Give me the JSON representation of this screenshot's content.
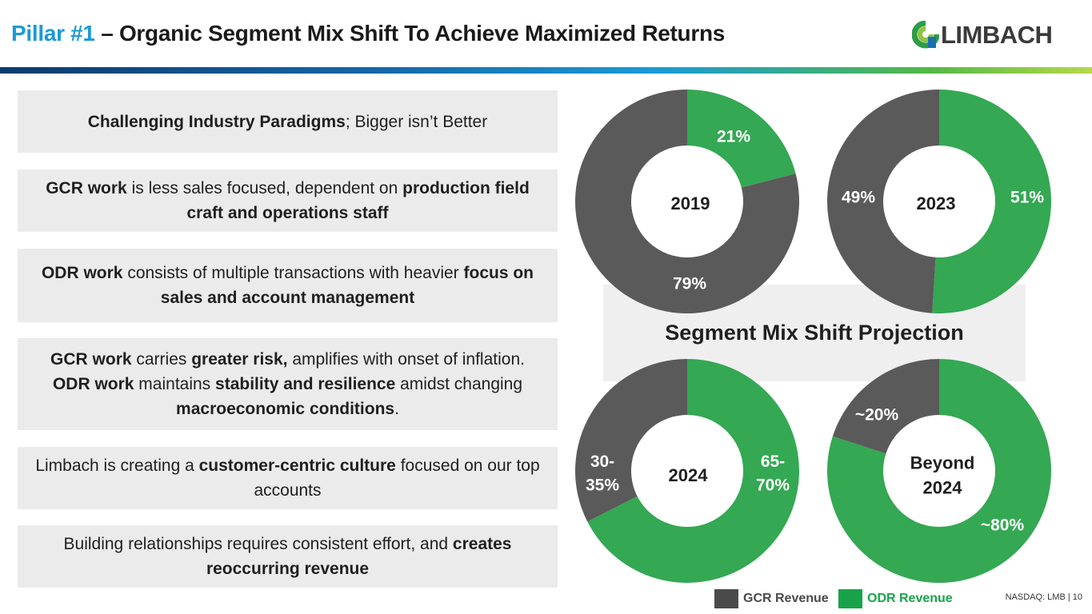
{
  "header": {
    "title_accent": "Pillar #1",
    "title_rest": " – Organic Segment Mix Shift To Achieve Maximized Returns",
    "logo_text": "LIMBACH"
  },
  "cards": [
    [
      {
        "t": "Challenging Industry Paradigms",
        "b": true
      },
      {
        "t": "; Bigger isn’t Better",
        "b": false
      }
    ],
    [
      {
        "t": "GCR work",
        "b": true
      },
      {
        "t": " is less sales focused, dependent on ",
        "b": false
      },
      {
        "t": "production field craft and operations staff",
        "b": true
      }
    ],
    [
      {
        "t": "ODR work",
        "b": true
      },
      {
        "t": " consists of multiple transactions with heavier ",
        "b": false
      },
      {
        "t": "focus on sales and account management",
        "b": true
      }
    ],
    [
      {
        "t": "GCR work",
        "b": true
      },
      {
        "t": " carries ",
        "b": false
      },
      {
        "t": "greater risk,",
        "b": true
      },
      {
        "t": " amplifies with onset of inflation. ",
        "b": false
      },
      {
        "t": "ODR work",
        "b": true
      },
      {
        "t": " maintains ",
        "b": false
      },
      {
        "t": "stability and resilience",
        "b": true
      },
      {
        "t": " amidst changing ",
        "b": false
      },
      {
        "t": "macroeconomic conditions",
        "b": true
      },
      {
        "t": ".",
        "b": false
      }
    ],
    [
      {
        "t": "Limbach is creating a ",
        "b": false
      },
      {
        "t": "customer-centric culture",
        "b": true
      },
      {
        "t": " focused on our top accounts",
        "b": false
      }
    ],
    [
      {
        "t": "Building relationships requires consistent effort, and ",
        "b": false
      },
      {
        "t": "creates reoccurring revenue",
        "b": true
      }
    ]
  ],
  "projection_title": "Segment Mix Shift Projection",
  "colors": {
    "gcr": "#5a5a5a",
    "odr": "#34a853",
    "title_accent": "#1b9ad6"
  },
  "chart_data": [
    {
      "type": "pie",
      "center_label": "2019",
      "slices": [
        {
          "name": "ODR Revenue",
          "value": 21,
          "label": "21%"
        },
        {
          "name": "GCR Revenue",
          "value": 79,
          "label": "79%"
        }
      ]
    },
    {
      "type": "pie",
      "center_label": "2023",
      "slices": [
        {
          "name": "ODR Revenue",
          "value": 51,
          "label": "51%"
        },
        {
          "name": "GCR Revenue",
          "value": 49,
          "label": "49%"
        }
      ]
    },
    {
      "type": "pie",
      "center_label": "2024",
      "slices": [
        {
          "name": "ODR Revenue",
          "value": 67.5,
          "label": "65-70%"
        },
        {
          "name": "GCR Revenue",
          "value": 32.5,
          "label": "30-35%"
        }
      ]
    },
    {
      "type": "pie",
      "center_label": "Beyond 2024",
      "slices": [
        {
          "name": "ODR Revenue",
          "value": 80,
          "label": "~80%"
        },
        {
          "name": "GCR Revenue",
          "value": 20,
          "label": "~20%"
        }
      ]
    }
  ],
  "legend": [
    {
      "name": "GCR Revenue",
      "color": "#5a5a5a"
    },
    {
      "name": "ODR Revenue",
      "color": "#34a853"
    }
  ],
  "footer": "NASDAQ: LMB | 10"
}
